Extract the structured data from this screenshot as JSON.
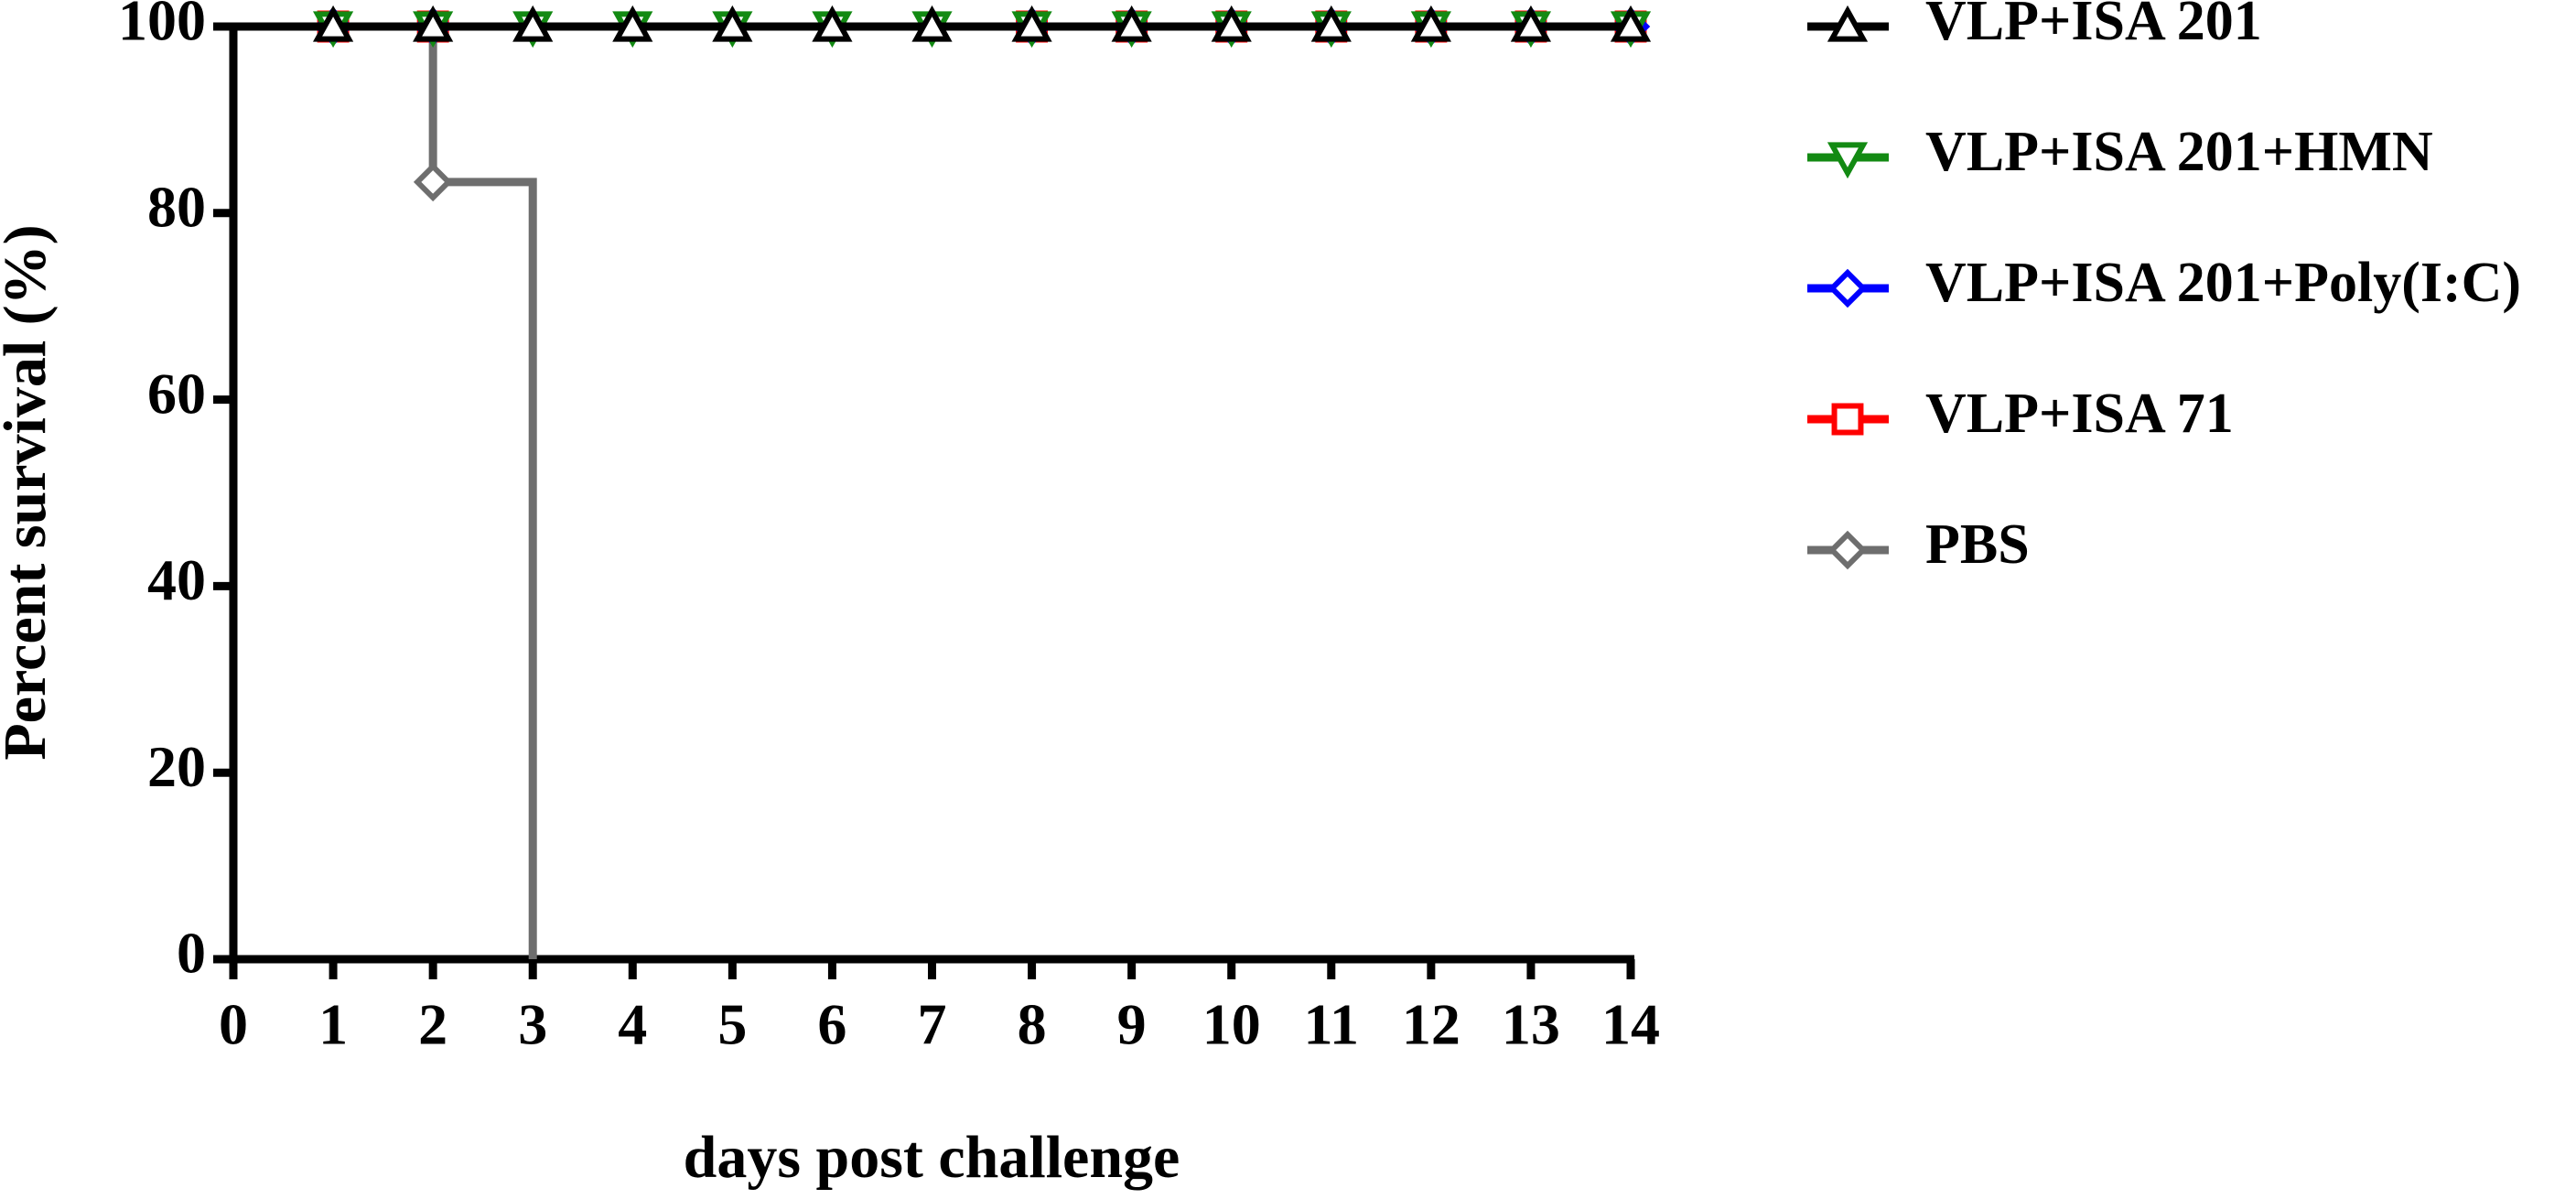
{
  "chart_data": {
    "type": "step",
    "xlabel": "days post challenge",
    "ylabel": "Percent survival (%)",
    "xlim": [
      0,
      14
    ],
    "xticks": [
      0,
      1,
      2,
      3,
      4,
      5,
      6,
      7,
      8,
      9,
      10,
      11,
      12,
      13,
      14
    ],
    "ylim": [
      0,
      100
    ],
    "yticks": [
      0,
      20,
      40,
      60,
      80,
      100
    ],
    "series": [
      {
        "name": "VLP+ISA 201",
        "color": "#000000",
        "marker": "triangle-up",
        "x": [
          0,
          1,
          2,
          3,
          4,
          5,
          6,
          7,
          8,
          9,
          10,
          11,
          12,
          13,
          14
        ],
        "values": [
          100,
          100,
          100,
          100,
          100,
          100,
          100,
          100,
          100,
          100,
          100,
          100,
          100,
          100,
          100
        ]
      },
      {
        "name": "VLP+ISA 201+HMN",
        "color": "#138a13",
        "marker": "triangle-down",
        "x": [
          0,
          1,
          2,
          3,
          4,
          5,
          6,
          7,
          8,
          9,
          10,
          11,
          12,
          13,
          14
        ],
        "values": [
          100,
          100,
          100,
          100,
          100,
          100,
          100,
          100,
          100,
          100,
          100,
          100,
          100,
          100,
          100
        ]
      },
      {
        "name": "VLP+ISA 201+Poly(I:C)",
        "color": "#0000ff",
        "marker": "diamond",
        "x": [
          0,
          1,
          2,
          8,
          9,
          10,
          11,
          12,
          13,
          14
        ],
        "values": [
          100,
          100,
          100,
          100,
          100,
          100,
          100,
          100,
          100,
          100
        ]
      },
      {
        "name": "VLP+ISA 71",
        "color": "#ff0000",
        "marker": "square",
        "x": [
          0,
          1,
          2,
          8,
          9,
          10,
          11,
          12,
          13,
          14
        ],
        "values": [
          100,
          100,
          100,
          100,
          100,
          100,
          100,
          100,
          100,
          100
        ]
      },
      {
        "name": "PBS",
        "color": "#6e6e6e",
        "marker": "diamond",
        "x": [
          0,
          1,
          2,
          3
        ],
        "values": [
          100,
          100,
          83.33,
          0
        ]
      }
    ]
  }
}
